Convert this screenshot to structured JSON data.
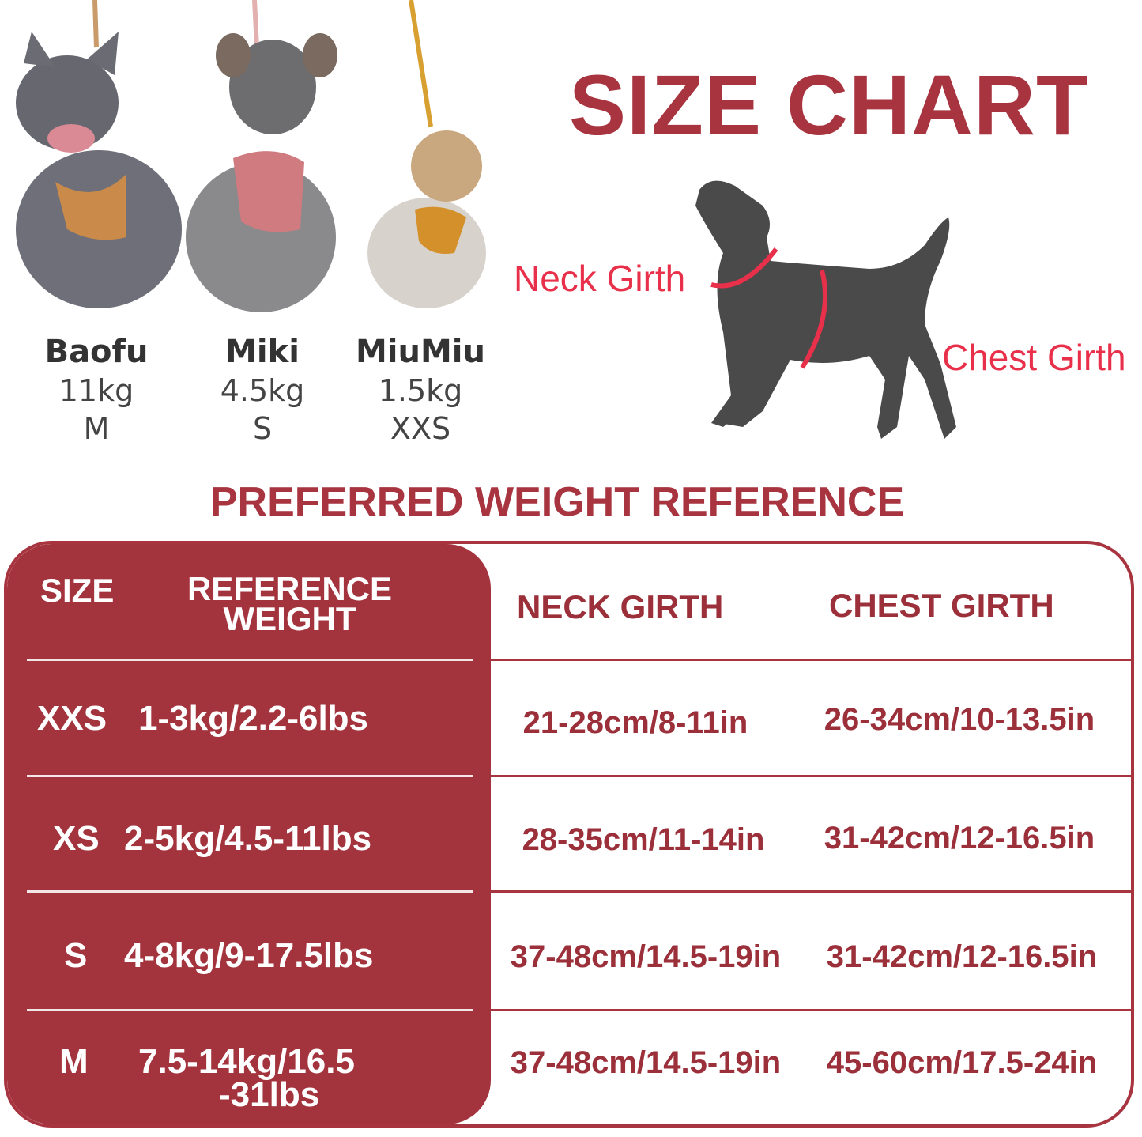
{
  "title": "SIZE CHART",
  "dogs": [
    {
      "name": "Baofu",
      "weight": "11kg",
      "size": "M"
    },
    {
      "name": "Miki",
      "weight": "4.5kg",
      "size": "S"
    },
    {
      "name": "MiuMiu",
      "weight": "1.5kg",
      "size": "XXS"
    }
  ],
  "diagram": {
    "neck_label": "Neck Girth",
    "chest_label": "Chest Girth"
  },
  "subtitle": "PREFERRED WEIGHT REFERENCE",
  "table": {
    "headers": {
      "size": "SIZE",
      "weight_line1": "REFERENCE",
      "weight_line2": "WEIGHT",
      "neck": "NECK GIRTH",
      "chest": "CHEST GIRTH"
    },
    "rows": [
      {
        "size": "XXS",
        "weight": "1-3kg/2.2-6lbs",
        "neck": "21-28cm/8-11in",
        "chest": "26-34cm/10-13.5in"
      },
      {
        "size": "XS",
        "weight": "2-5kg/4.5-11lbs",
        "neck": "28-35cm/11-14in",
        "chest": "31-42cm/12-16.5in"
      },
      {
        "size": "S",
        "weight": "4-8kg/9-17.5lbs",
        "neck": "37-48cm/14.5-19in",
        "chest": "31-42cm/12-16.5in"
      },
      {
        "size": "M",
        "weight_line1": "7.5-14kg/16.5",
        "weight_line2": "-31lbs",
        "neck": "37-48cm/14.5-19in",
        "chest": "45-60cm/17.5-24in"
      }
    ]
  },
  "colors": {
    "brand_red": "#a3343d",
    "girth_red": "#e8304a",
    "dog_gray": "#4a4a4a"
  }
}
